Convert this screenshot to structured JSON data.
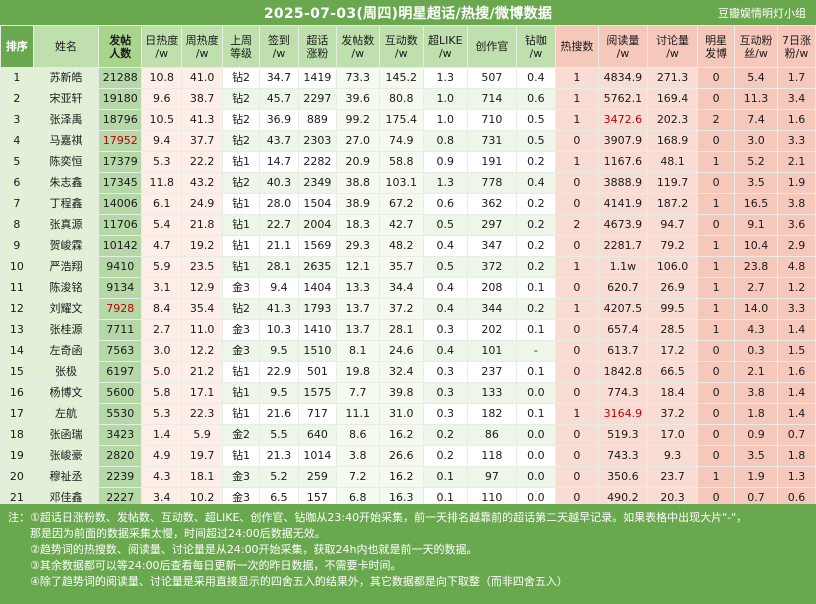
{
  "header": {
    "title": "2025-07-03(周四)明星超话/热搜/微博数据",
    "group": "豆瓣娱情明灯小组"
  },
  "columns": [
    {
      "label": "排序"
    },
    {
      "label": "姓名"
    },
    {
      "label": "发帖\n人数"
    },
    {
      "label": "日热度\n/w"
    },
    {
      "label": "周热度\n/w"
    },
    {
      "label": "上周\n等级"
    },
    {
      "label": "签到\n/w"
    },
    {
      "label": "超话\n涨粉"
    },
    {
      "label": "发帖数\n/w"
    },
    {
      "label": "互动数\n/w"
    },
    {
      "label": "超LIKE\n/w"
    },
    {
      "label": "创作官"
    },
    {
      "label": "钻咖\n/w"
    },
    {
      "label": "热搜数"
    },
    {
      "label": "阅读量\n/w"
    },
    {
      "label": "讨论量\n/w"
    },
    {
      "label": "明星\n发博"
    },
    {
      "label": "互动粉\n丝/w"
    },
    {
      "label": "7日涨\n粉/w"
    }
  ],
  "rows": [
    [
      "1",
      "苏新皓",
      "21288",
      "10.8",
      "41.0",
      "钻2",
      "34.7",
      "1419",
      "73.3",
      "145.2",
      "1.3",
      "507",
      "0.4",
      "1",
      "4834.9",
      "271.3",
      "0",
      "5.4",
      "1.7"
    ],
    [
      "2",
      "宋亚轩",
      "19180",
      "9.6",
      "38.7",
      "钻2",
      "45.7",
      "2297",
      "39.6",
      "80.8",
      "1.0",
      "714",
      "0.6",
      "1",
      "5762.1",
      "169.4",
      "0",
      "11.3",
      "3.4"
    ],
    [
      "3",
      "张泽禹",
      "18796",
      "10.5",
      "41.3",
      "钻2",
      "36.9",
      "889",
      "99.2",
      "175.4",
      "1.0",
      "710",
      "0.5",
      "1",
      "3472.6",
      "202.3",
      "2",
      "7.4",
      "1.6"
    ],
    [
      "4",
      "马嘉祺",
      "17952",
      "9.4",
      "37.7",
      "钻2",
      "43.7",
      "2303",
      "27.0",
      "74.9",
      "0.8",
      "731",
      "0.5",
      "0",
      "3907.9",
      "168.9",
      "0",
      "3.0",
      "3.3"
    ],
    [
      "5",
      "陈奕恒",
      "17379",
      "5.3",
      "22.2",
      "钻1",
      "14.7",
      "2282",
      "20.9",
      "58.8",
      "0.9",
      "191",
      "0.2",
      "1",
      "1167.6",
      "48.1",
      "1",
      "5.2",
      "2.1"
    ],
    [
      "6",
      "朱志鑫",
      "17345",
      "11.8",
      "43.2",
      "钻2",
      "40.3",
      "2349",
      "38.8",
      "103.1",
      "1.3",
      "778",
      "0.4",
      "0",
      "3888.9",
      "119.7",
      "0",
      "3.5",
      "1.9"
    ],
    [
      "7",
      "丁程鑫",
      "14006",
      "6.1",
      "24.9",
      "钻1",
      "28.0",
      "1504",
      "38.9",
      "67.2",
      "0.6",
      "362",
      "0.2",
      "0",
      "4141.9",
      "187.2",
      "1",
      "16.5",
      "3.8"
    ],
    [
      "8",
      "张真源",
      "11706",
      "5.4",
      "21.8",
      "钻1",
      "22.7",
      "2004",
      "18.3",
      "42.7",
      "0.5",
      "297",
      "0.2",
      "2",
      "4673.9",
      "94.7",
      "0",
      "9.1",
      "3.6"
    ],
    [
      "9",
      "贺峻霖",
      "10142",
      "4.7",
      "19.2",
      "钻1",
      "21.1",
      "1569",
      "29.3",
      "48.2",
      "0.4",
      "347",
      "0.2",
      "0",
      "2281.7",
      "79.2",
      "1",
      "10.4",
      "2.9"
    ],
    [
      "10",
      "严浩翔",
      "9410",
      "5.9",
      "23.5",
      "钻1",
      "28.1",
      "2635",
      "12.1",
      "35.7",
      "0.5",
      "372",
      "0.2",
      "1",
      "1.1w",
      "106.0",
      "1",
      "23.8",
      "4.8"
    ],
    [
      "11",
      "陈浚铭",
      "9134",
      "3.1",
      "12.9",
      "金3",
      "9.4",
      "1404",
      "13.3",
      "34.4",
      "0.4",
      "208",
      "0.1",
      "0",
      "620.7",
      "26.9",
      "1",
      "2.7",
      "1.2"
    ],
    [
      "12",
      "刘耀文",
      "7928",
      "8.4",
      "35.4",
      "钻2",
      "41.3",
      "1793",
      "13.7",
      "37.2",
      "0.4",
      "344",
      "0.2",
      "1",
      "4207.5",
      "99.5",
      "1",
      "14.0",
      "3.3"
    ],
    [
      "13",
      "张桂源",
      "7711",
      "2.7",
      "11.0",
      "金3",
      "10.3",
      "1410",
      "13.7",
      "28.1",
      "0.3",
      "202",
      "0.1",
      "0",
      "657.4",
      "28.5",
      "1",
      "4.3",
      "1.4"
    ],
    [
      "14",
      "左奇函",
      "7563",
      "3.0",
      "12.2",
      "金3",
      "9.5",
      "1510",
      "8.1",
      "24.6",
      "0.4",
      "101",
      "-",
      "0",
      "613.7",
      "17.2",
      "0",
      "0.3",
      "1.5"
    ],
    [
      "15",
      "张极",
      "6197",
      "5.0",
      "21.2",
      "钻1",
      "22.9",
      "501",
      "19.8",
      "32.4",
      "0.3",
      "237",
      "0.1",
      "0",
      "1842.8",
      "66.5",
      "0",
      "2.1",
      "1.6"
    ],
    [
      "16",
      "杨博文",
      "5600",
      "5.8",
      "17.1",
      "钻1",
      "9.5",
      "1575",
      "7.7",
      "39.8",
      "0.3",
      "133",
      "0.0",
      "0",
      "774.3",
      "18.4",
      "0",
      "3.8",
      "1.4"
    ],
    [
      "17",
      "左航",
      "5530",
      "5.3",
      "22.3",
      "钻1",
      "21.6",
      "717",
      "11.1",
      "31.0",
      "0.3",
      "182",
      "0.1",
      "1",
      "3164.9",
      "37.2",
      "0",
      "1.8",
      "1.4"
    ],
    [
      "18",
      "张函瑞",
      "3423",
      "1.4",
      "5.9",
      "金2",
      "5.5",
      "640",
      "8.6",
      "16.2",
      "0.2",
      "86",
      "0.0",
      "0",
      "519.3",
      "17.0",
      "0",
      "0.9",
      "0.7"
    ],
    [
      "19",
      "张峻豪",
      "2820",
      "4.9",
      "19.7",
      "钻1",
      "21.3",
      "1014",
      "3.8",
      "26.6",
      "0.2",
      "118",
      "0.0",
      "0",
      "743.3",
      "9.3",
      "0",
      "3.5",
      "1.8"
    ],
    [
      "20",
      "穆祉丞",
      "2239",
      "4.3",
      "18.1",
      "金3",
      "5.2",
      "259",
      "7.2",
      "16.2",
      "0.1",
      "97",
      "0.0",
      "0",
      "350.6",
      "23.7",
      "1",
      "1.9",
      "1.3"
    ],
    [
      "21",
      "邓佳鑫",
      "2227",
      "3.4",
      "10.2",
      "金3",
      "6.5",
      "157",
      "6.8",
      "16.3",
      "0.1",
      "110",
      "0.0",
      "0",
      "490.2",
      "20.3",
      "0",
      "0.7",
      "0.6"
    ],
    [
      "22",
      "余宇涵",
      "1556",
      "2.0",
      "8.1",
      "金2",
      "12.9",
      "195",
      "3.8",
      "6.8",
      "0.1",
      "125",
      "0.0",
      "0",
      "545.7",
      "17.8",
      "0",
      "0.4",
      "0.5"
    ]
  ],
  "red_cells": [
    [
      3,
      14
    ],
    [
      4,
      2
    ],
    [
      12,
      2
    ],
    [
      17,
      14
    ]
  ],
  "notes": {
    "label": "注：",
    "lines": [
      "①超话日涨粉数、发帖数、互动数、超LIKE、创作官、钻咖从23:40开始采集，前一天排名越靠前的超话第二天越早记录。如果表格中出现大片\"-\"，",
      "那是因为前面的数据采集太慢，时间超过24:00后数据无效。",
      "②趋势词的热搜数、阅读量、讨论量是从24:00开始采集，获取24h内也就是前一天的数据。",
      "③其余数据都可以等24:00后查看每日更新一次的昨日数据，不需要卡时间。",
      "④除了趋势词的阅读量、讨论量是采用直接显示的四舍五入的结果外，其它数据都是向下取整（而非四舍五入）"
    ]
  }
}
